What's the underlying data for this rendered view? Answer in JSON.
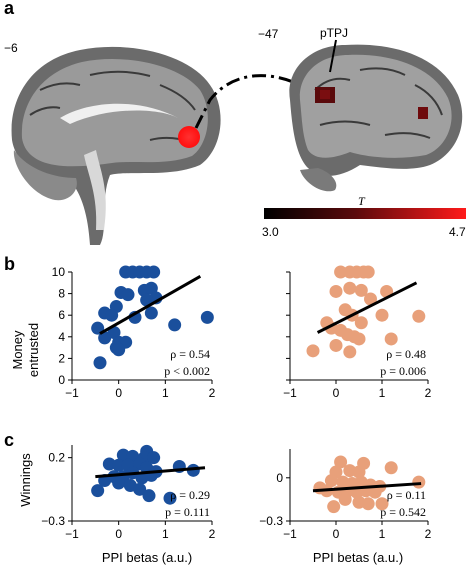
{
  "panel_a": {
    "letter": "a",
    "left_slice_label": "−6",
    "right_slice_label": "−47",
    "region_label": "pTPJ",
    "colorbar": {
      "title": "T",
      "min_label": "3.0",
      "max_label": "4.7",
      "color_low": "#000000",
      "color_mid": "#8a0f12",
      "color_high": "#ff1a1a"
    },
    "colors": {
      "seed": "#ff1010",
      "cluster": "#6e0a0c"
    }
  },
  "panel_b": {
    "letter": "b",
    "ylabel_lines": [
      "Money",
      "entrusted"
    ]
  },
  "panel_c": {
    "letter": "c",
    "ylabel": "Winnings"
  },
  "xlabel": "PPI betas (a.u.)",
  "colors": {
    "blue": "#1a4f9c",
    "orange": "#e8a07a",
    "line": "#000000"
  },
  "chart_data": [
    {
      "id": "b-left",
      "type": "scatter",
      "color": "blue",
      "xlim": [
        -1,
        2
      ],
      "ylim": [
        0,
        10
      ],
      "xticks": [
        -1,
        0,
        1,
        2
      ],
      "yticks": [
        0,
        2,
        4,
        6,
        8,
        10
      ],
      "xtick_labels": [
        "−1",
        "0",
        "1",
        "2"
      ],
      "ytick_labels": [
        "0",
        "2",
        "4",
        "6",
        "8",
        "10"
      ],
      "points": [
        [
          0.15,
          10
        ],
        [
          0.3,
          10
        ],
        [
          0.45,
          10
        ],
        [
          0.6,
          10
        ],
        [
          0.75,
          10
        ],
        [
          0.05,
          8.1
        ],
        [
          0.2,
          7.9
        ],
        [
          0.55,
          8.3
        ],
        [
          0.7,
          8.5
        ],
        [
          0.8,
          7.6
        ],
        [
          0.6,
          7.4
        ],
        [
          -0.05,
          6.8
        ],
        [
          -0.3,
          6.2
        ],
        [
          -0.15,
          6.0
        ],
        [
          0.7,
          6.2
        ],
        [
          0.35,
          5.8
        ],
        [
          1.9,
          5.8
        ],
        [
          1.2,
          5.1
        ],
        [
          -0.45,
          4.8
        ],
        [
          -0.1,
          4.4
        ],
        [
          -0.3,
          3.9
        ],
        [
          0.0,
          3.5
        ],
        [
          0.15,
          3.5
        ],
        [
          -0.05,
          3.0
        ],
        [
          0.0,
          2.8
        ],
        [
          -0.4,
          1.6
        ]
      ],
      "fit": {
        "x": [
          -0.4,
          1.75
        ],
        "y": [
          4.3,
          9.6
        ]
      },
      "stats": {
        "rho": "ρ = 0.54",
        "p": "p < 0.002"
      }
    },
    {
      "id": "b-right",
      "type": "scatter",
      "color": "orange",
      "xlim": [
        -1,
        2
      ],
      "ylim": [
        0,
        10
      ],
      "xticks": [
        -1,
        0,
        1,
        2
      ],
      "yticks": [
        0,
        2,
        4,
        6,
        8,
        10
      ],
      "xtick_labels": [
        "−1",
        "0",
        "1",
        "2"
      ],
      "ytick_labels": [],
      "points": [
        [
          0.1,
          10
        ],
        [
          0.3,
          10
        ],
        [
          0.45,
          10
        ],
        [
          0.6,
          10
        ],
        [
          0.7,
          10
        ],
        [
          0.0,
          8.2
        ],
        [
          0.3,
          8.5
        ],
        [
          0.55,
          8.3
        ],
        [
          1.1,
          8.2
        ],
        [
          0.75,
          7.5
        ],
        [
          0.2,
          6.5
        ],
        [
          0.35,
          6.0
        ],
        [
          1.0,
          6.0
        ],
        [
          1.8,
          5.9
        ],
        [
          -0.2,
          5.3
        ],
        [
          0.55,
          5.3
        ],
        [
          -0.1,
          4.8
        ],
        [
          0.1,
          4.6
        ],
        [
          0.25,
          4.2
        ],
        [
          0.4,
          4.0
        ],
        [
          0.5,
          3.8
        ],
        [
          0.0,
          3.2
        ],
        [
          -0.5,
          2.7
        ],
        [
          0.3,
          2.6
        ],
        [
          1.2,
          3.8
        ]
      ],
      "fit": {
        "x": [
          -0.4,
          1.75
        ],
        "y": [
          4.4,
          9.0
        ]
      },
      "stats": {
        "rho": "ρ = 0.48",
        "p": "p = 0.006"
      }
    },
    {
      "id": "c-left",
      "type": "scatter",
      "color": "blue",
      "xlim": [
        -1,
        2
      ],
      "ylim": [
        -0.3,
        0.3
      ],
      "xticks": [
        -1,
        0,
        1,
        2
      ],
      "yticks": [
        -0.3,
        0.2
      ],
      "xtick_labels": [
        "−1",
        "0",
        "1",
        "2"
      ],
      "ytick_labels": [
        "−0.3",
        "0.2"
      ],
      "points": [
        [
          0.6,
          0.25
        ],
        [
          0.1,
          0.22
        ],
        [
          0.3,
          0.21
        ],
        [
          0.55,
          0.2
        ],
        [
          0.75,
          0.2
        ],
        [
          -0.2,
          0.15
        ],
        [
          0.0,
          0.14
        ],
        [
          0.2,
          0.14
        ],
        [
          0.45,
          0.15
        ],
        [
          0.6,
          0.12
        ],
        [
          1.3,
          0.13
        ],
        [
          0.8,
          0.09
        ],
        [
          -0.1,
          0.05
        ],
        [
          0.1,
          0.05
        ],
        [
          0.3,
          0.08
        ],
        [
          0.5,
          0.04
        ],
        [
          0.7,
          0.06
        ],
        [
          1.6,
          0.1
        ],
        [
          -0.3,
          0.02
        ],
        [
          0.0,
          0.0
        ],
        [
          0.25,
          -0.02
        ],
        [
          0.45,
          -0.05
        ],
        [
          0.65,
          -0.1
        ],
        [
          1.1,
          -0.12
        ],
        [
          -0.45,
          -0.06
        ]
      ],
      "fit": {
        "x": [
          -0.5,
          1.85
        ],
        "y": [
          0.05,
          0.12
        ]
      },
      "stats": {
        "rho": "ρ = 0.29",
        "p": "p = 0.111"
      }
    },
    {
      "id": "c-right",
      "type": "scatter",
      "color": "orange",
      "xlim": [
        -1,
        2
      ],
      "ylim": [
        -0.3,
        0.2
      ],
      "xticks": [
        -1,
        0,
        1,
        2
      ],
      "yticks": [
        -0.3,
        0
      ],
      "xtick_labels": [
        "−1",
        "0",
        "1",
        "2"
      ],
      "ytick_labels": [
        "−0.3",
        "0"
      ],
      "points": [
        [
          0.1,
          0.11
        ],
        [
          0.6,
          0.1
        ],
        [
          0.3,
          0.05
        ],
        [
          0.0,
          0.04
        ],
        [
          0.5,
          0.04
        ],
        [
          1.2,
          0.07
        ],
        [
          -0.1,
          -0.02
        ],
        [
          0.15,
          -0.03
        ],
        [
          0.35,
          -0.04
        ],
        [
          0.55,
          -0.03
        ],
        [
          0.75,
          -0.05
        ],
        [
          0.95,
          -0.06
        ],
        [
          1.8,
          -0.03
        ],
        [
          -0.35,
          -0.07
        ],
        [
          -0.2,
          -0.09
        ],
        [
          0.05,
          -0.1
        ],
        [
          0.25,
          -0.09
        ],
        [
          0.45,
          -0.1
        ],
        [
          0.65,
          -0.09
        ],
        [
          0.85,
          -0.1
        ],
        [
          0.2,
          -0.15
        ],
        [
          0.5,
          -0.17
        ],
        [
          0.7,
          -0.18
        ],
        [
          -0.05,
          -0.2
        ],
        [
          1.0,
          -0.18
        ]
      ],
      "fit": {
        "x": [
          -0.5,
          1.85
        ],
        "y": [
          -0.09,
          -0.04
        ]
      },
      "stats": {
        "rho": "ρ = 0.11",
        "p": "p = 0.542"
      }
    }
  ]
}
